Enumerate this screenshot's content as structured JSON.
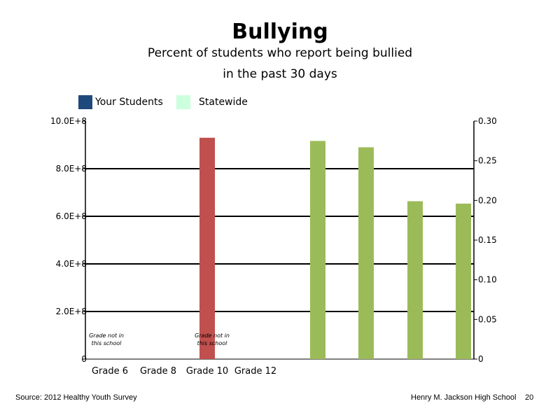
{
  "chart_data": {
    "type": "bar",
    "title": "Bullying",
    "subtitle_lines": [
      "Percent of students who report being bullied",
      "in the past 30 days"
    ],
    "categories": [
      "Grade 6",
      "Grade 8",
      "Grade 10",
      "Grade 12"
    ],
    "series": [
      {
        "name": "Your Students",
        "color": "#1F497D"
      },
      {
        "name": "Statewide",
        "color": "#CCFFDD"
      }
    ],
    "left_axis": {
      "ticks": [
        0,
        200000000,
        400000000,
        600000000,
        800000000,
        1000000000
      ],
      "tick_labels": [
        "0",
        "2.0E+8",
        "4.0E+8",
        "6.0E+8",
        "8.0E+8",
        "10.0E+8"
      ],
      "ylim": [
        0,
        1000000000
      ]
    },
    "right_axis": {
      "ticks": [
        0,
        0.05,
        0.1,
        0.15,
        0.2,
        0.25,
        0.3
      ],
      "tick_labels": [
        "0",
        "0.05",
        "0.10",
        "0.15",
        "0.20",
        "0.25",
        "0.30"
      ],
      "ylim": [
        0,
        0.3
      ]
    },
    "bars": [
      {
        "axis": "left",
        "value": 930000000,
        "color": "#C0504D"
      },
      {
        "axis": "right",
        "value": 0.275,
        "color": "#9BBB59"
      },
      {
        "axis": "right",
        "value": 0.267,
        "color": "#9BBB59"
      },
      {
        "axis": "right",
        "value": 0.199,
        "color": "#9BBB59"
      },
      {
        "axis": "right",
        "value": 0.196,
        "color": "#9BBB59"
      }
    ],
    "annotations": [
      "Grade not in this school",
      "Grade not in this school"
    ],
    "grid": true
  },
  "footer": {
    "source": "Source: 2012 Healthy Youth Survey",
    "school": "Henry M. Jackson High School",
    "page": "20"
  }
}
